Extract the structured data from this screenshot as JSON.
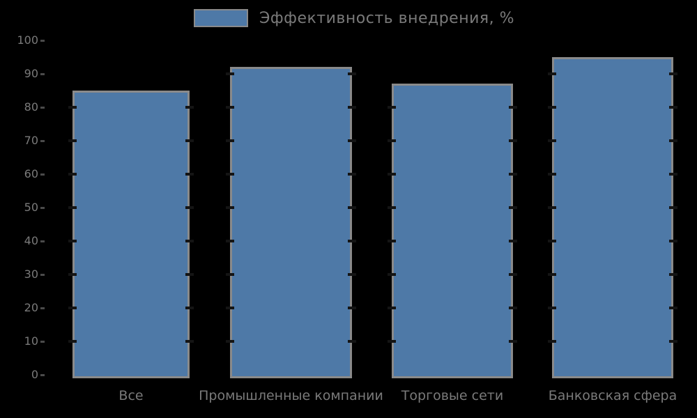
{
  "chart_data": {
    "type": "bar",
    "title": "",
    "legend": "Эффективность внедрения, %",
    "legend_position": "top-center",
    "categories": [
      "Все",
      "Промышленные компании",
      "Торговые сети",
      "Банковская сфера"
    ],
    "values": [
      85,
      92,
      87,
      95
    ],
    "yticks": [
      0,
      10,
      20,
      30,
      40,
      50,
      60,
      70,
      80,
      90,
      100
    ],
    "ylim": [
      0,
      100
    ],
    "xlabel": "",
    "ylabel": "",
    "grid": false,
    "colors": {
      "bar_fill": "#4e79a7",
      "bar_border": "#8a8a8a",
      "text": "#7a7a7a",
      "background": "#000000",
      "edge_tick": "#141414"
    }
  }
}
